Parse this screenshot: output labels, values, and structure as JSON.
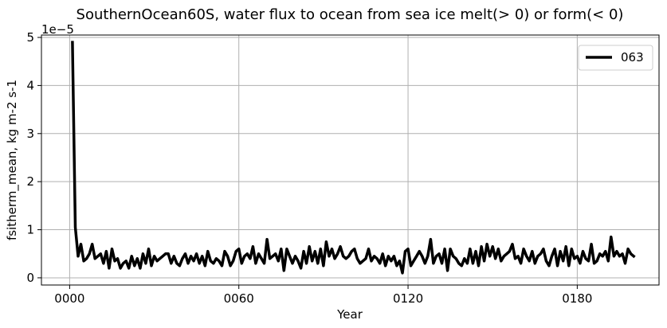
{
  "chart_data": {
    "type": "line",
    "title": "SouthernOcean60S, water flux to ocean from sea ice melt(> 0) or form(< 0)",
    "xlabel": "Year",
    "ylabel": "fsitherm_mean, kg m-2 s-1",
    "y_offset_text": "1e−5",
    "y_scale": 1e-05,
    "xlim": [
      -10,
      209
    ],
    "ylim": [
      -0.15,
      5.05
    ],
    "x_ticks": [
      0,
      60,
      120,
      180
    ],
    "x_tick_labels": [
      "0000",
      "0060",
      "0120",
      "0180"
    ],
    "y_ticks": [
      0,
      1,
      2,
      3,
      4,
      5
    ],
    "y_tick_labels": [
      "0",
      "1",
      "2",
      "3",
      "4",
      "5"
    ],
    "grid": true,
    "legend_position": "top-right",
    "series": [
      {
        "name": "063",
        "color": "#000000",
        "x": [
          1,
          2,
          3,
          4,
          5,
          6,
          7,
          8,
          9,
          10,
          11,
          12,
          13,
          14,
          15,
          16,
          17,
          18,
          19,
          20,
          21,
          22,
          23,
          24,
          25,
          26,
          27,
          28,
          29,
          30,
          31,
          32,
          33,
          34,
          35,
          36,
          37,
          38,
          39,
          40,
          41,
          42,
          43,
          44,
          45,
          46,
          47,
          48,
          49,
          50,
          51,
          52,
          53,
          54,
          55,
          56,
          57,
          58,
          59,
          60,
          61,
          62,
          63,
          64,
          65,
          66,
          67,
          68,
          69,
          70,
          71,
          72,
          73,
          74,
          75,
          76,
          77,
          78,
          79,
          80,
          81,
          82,
          83,
          84,
          85,
          86,
          87,
          88,
          89,
          90,
          91,
          92,
          93,
          94,
          95,
          96,
          97,
          98,
          99,
          100,
          101,
          102,
          103,
          104,
          105,
          106,
          107,
          108,
          109,
          110,
          111,
          112,
          113,
          114,
          115,
          116,
          117,
          118,
          119,
          120,
          121,
          122,
          123,
          124,
          125,
          126,
          127,
          128,
          129,
          130,
          131,
          132,
          133,
          134,
          135,
          136,
          137,
          138,
          139,
          140,
          141,
          142,
          143,
          144,
          145,
          146,
          147,
          148,
          149,
          150,
          151,
          152,
          153,
          154,
          155,
          156,
          157,
          158,
          159,
          160,
          161,
          162,
          163,
          164,
          165,
          166,
          167,
          168,
          169,
          170,
          171,
          172,
          173,
          174,
          175,
          176,
          177,
          178,
          179,
          180,
          181,
          182,
          183,
          184,
          185,
          186,
          187,
          188,
          189,
          190,
          191,
          192,
          193,
          194,
          195,
          196,
          197,
          198,
          199,
          200
        ],
        "values": [
          4.9,
          1.05,
          0.45,
          0.7,
          0.35,
          0.4,
          0.5,
          0.7,
          0.4,
          0.45,
          0.5,
          0.3,
          0.55,
          0.2,
          0.6,
          0.35,
          0.4,
          0.2,
          0.3,
          0.35,
          0.2,
          0.45,
          0.25,
          0.4,
          0.2,
          0.5,
          0.3,
          0.6,
          0.25,
          0.45,
          0.35,
          0.4,
          0.45,
          0.5,
          0.5,
          0.3,
          0.45,
          0.3,
          0.25,
          0.4,
          0.5,
          0.3,
          0.45,
          0.35,
          0.5,
          0.3,
          0.45,
          0.25,
          0.55,
          0.35,
          0.3,
          0.4,
          0.35,
          0.25,
          0.55,
          0.45,
          0.25,
          0.35,
          0.55,
          0.6,
          0.3,
          0.45,
          0.5,
          0.4,
          0.65,
          0.3,
          0.5,
          0.4,
          0.3,
          0.8,
          0.4,
          0.45,
          0.5,
          0.35,
          0.6,
          0.15,
          0.6,
          0.45,
          0.3,
          0.45,
          0.35,
          0.2,
          0.55,
          0.3,
          0.65,
          0.35,
          0.55,
          0.3,
          0.6,
          0.25,
          0.75,
          0.45,
          0.6,
          0.4,
          0.5,
          0.65,
          0.45,
          0.4,
          0.45,
          0.55,
          0.6,
          0.4,
          0.3,
          0.35,
          0.4,
          0.6,
          0.35,
          0.45,
          0.4,
          0.3,
          0.5,
          0.25,
          0.45,
          0.35,
          0.45,
          0.25,
          0.35,
          0.1,
          0.55,
          0.6,
          0.25,
          0.35,
          0.45,
          0.55,
          0.45,
          0.3,
          0.45,
          0.8,
          0.3,
          0.45,
          0.5,
          0.3,
          0.6,
          0.15,
          0.6,
          0.45,
          0.4,
          0.3,
          0.25,
          0.4,
          0.3,
          0.6,
          0.3,
          0.55,
          0.25,
          0.65,
          0.35,
          0.7,
          0.45,
          0.65,
          0.4,
          0.6,
          0.35,
          0.45,
          0.5,
          0.55,
          0.7,
          0.4,
          0.45,
          0.3,
          0.6,
          0.45,
          0.35,
          0.55,
          0.3,
          0.45,
          0.5,
          0.6,
          0.35,
          0.25,
          0.45,
          0.6,
          0.25,
          0.55,
          0.35,
          0.65,
          0.25,
          0.6,
          0.4,
          0.45,
          0.3,
          0.55,
          0.4,
          0.35,
          0.7,
          0.3,
          0.35,
          0.5,
          0.45,
          0.55,
          0.35,
          0.85,
          0.45,
          0.55,
          0.45,
          0.5,
          0.3,
          0.6,
          0.5,
          0.45
        ]
      }
    ]
  }
}
